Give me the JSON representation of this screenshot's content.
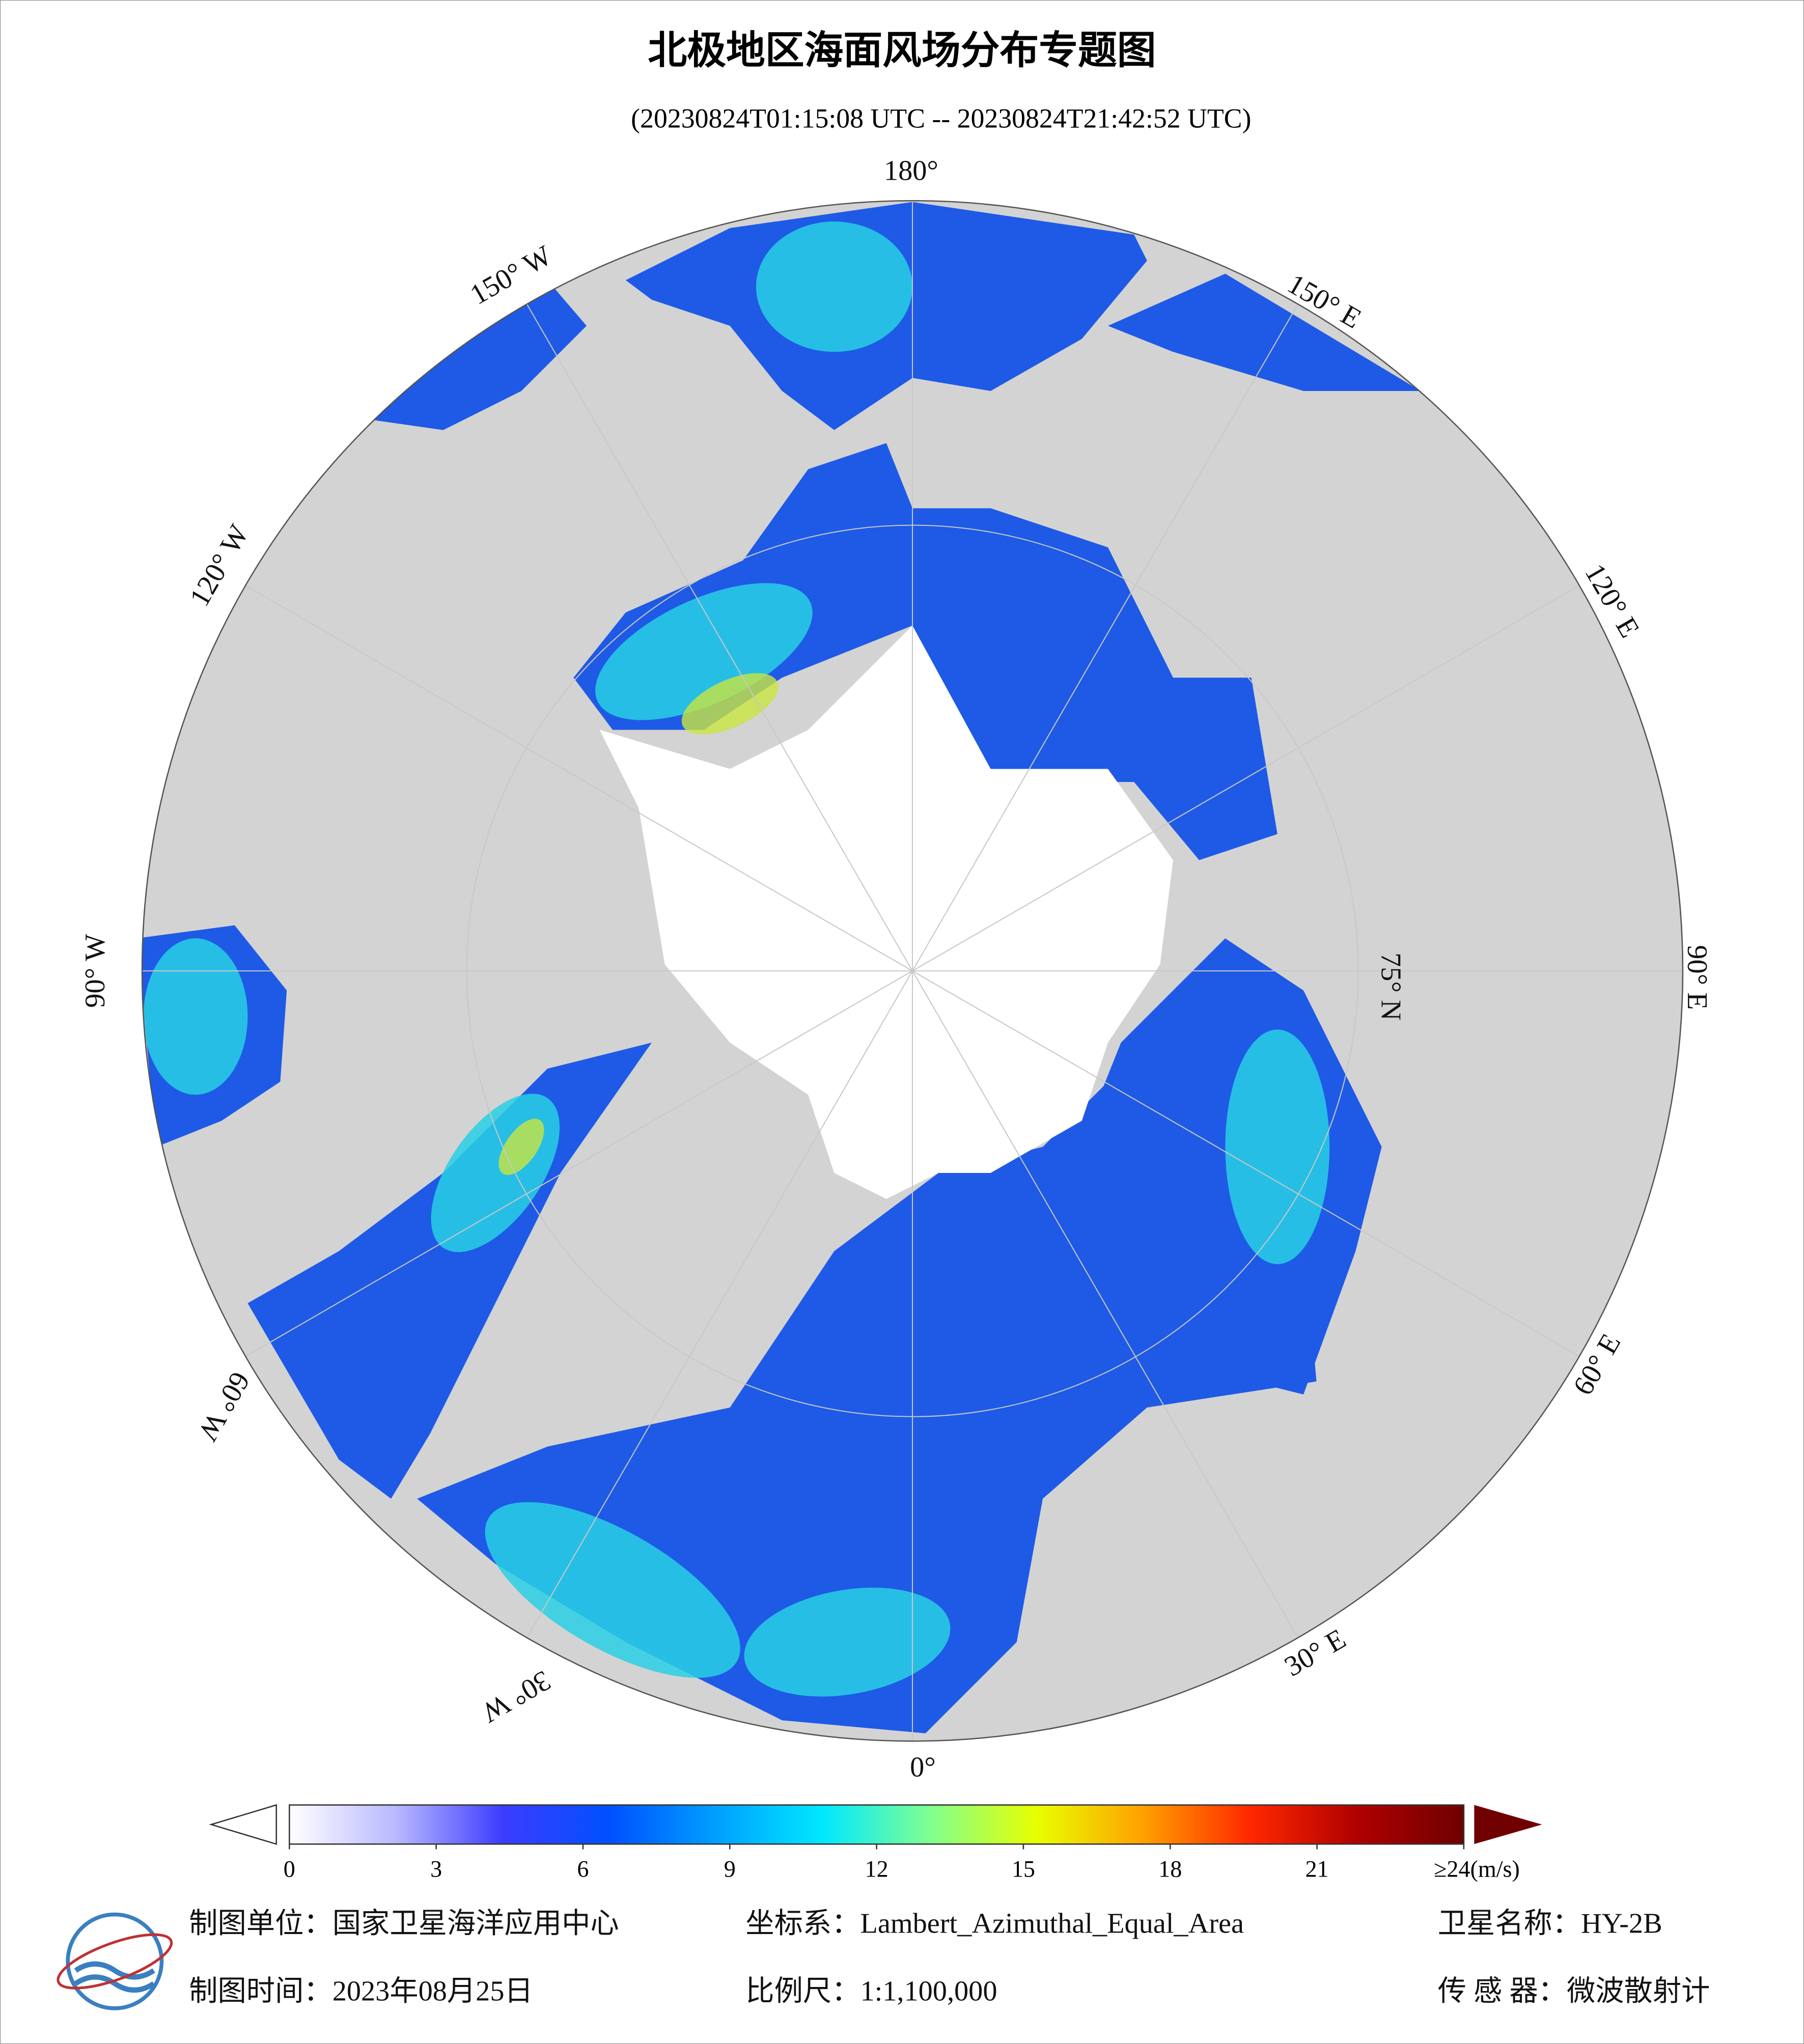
{
  "title": "北极地区海面风场分布专题图",
  "subtitle": "(20230824T01:15:08 UTC -- 20230824T21:42:52 UTC)",
  "graticule_labels": {
    "lon": [
      "180°",
      "150° W",
      "120° W",
      "90° W",
      "60° W",
      "30° W",
      "0°",
      "30° E",
      "60° E",
      "90° E",
      "120° E",
      "150° E"
    ],
    "lat": "75° N"
  },
  "colorbar": {
    "range": [
      0,
      24
    ],
    "ticks": [
      0,
      3,
      6,
      9,
      12,
      15,
      18,
      21,
      {
        "value": 24,
        "label": "≥24(m/s)"
      }
    ],
    "colors": [
      "#ffffff",
      "#b8b8ff",
      "#3c3cff",
      "#0050ff",
      "#00a0ff",
      "#00e8ff",
      "#80ff90",
      "#e8ff00",
      "#ffa000",
      "#ff2800",
      "#b00000",
      "#700000"
    ]
  },
  "footer": {
    "unit": "制图单位：国家卫星海洋应用中心",
    "crs": "坐标系：Lambert_Azimuthal_Equal_Area",
    "satellite": "卫星名称：HY-2B",
    "date": "制图时间：2023年08月25日",
    "scale": "比例尺：1:1,100,000",
    "sensor": "传 感 器：微波散射计"
  }
}
